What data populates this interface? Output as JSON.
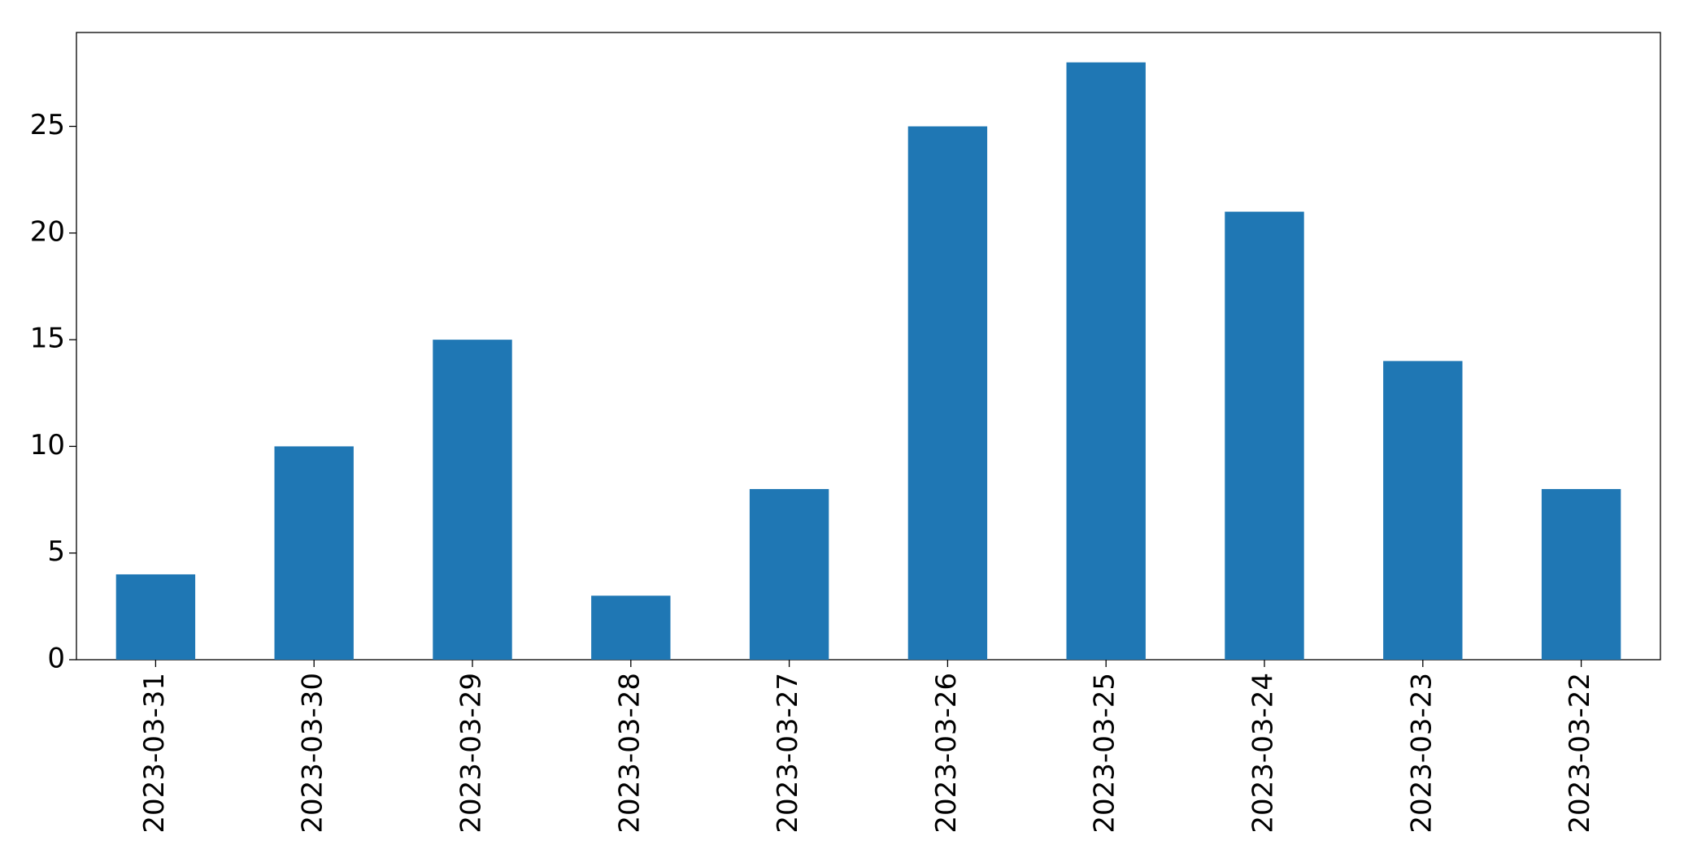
{
  "chart_data": {
    "type": "bar",
    "categories": [
      "2023-03-31",
      "2023-03-30",
      "2023-03-29",
      "2023-03-28",
      "2023-03-27",
      "2023-03-26",
      "2023-03-25",
      "2023-03-24",
      "2023-03-23",
      "2023-03-22"
    ],
    "values": [
      4,
      10,
      15,
      3,
      8,
      25,
      28,
      21,
      14,
      8
    ],
    "color": "#1f77b4",
    "ylim": [
      0,
      29.4
    ],
    "yticks": [
      0,
      5,
      10,
      15,
      20,
      25
    ],
    "grid": false
  }
}
